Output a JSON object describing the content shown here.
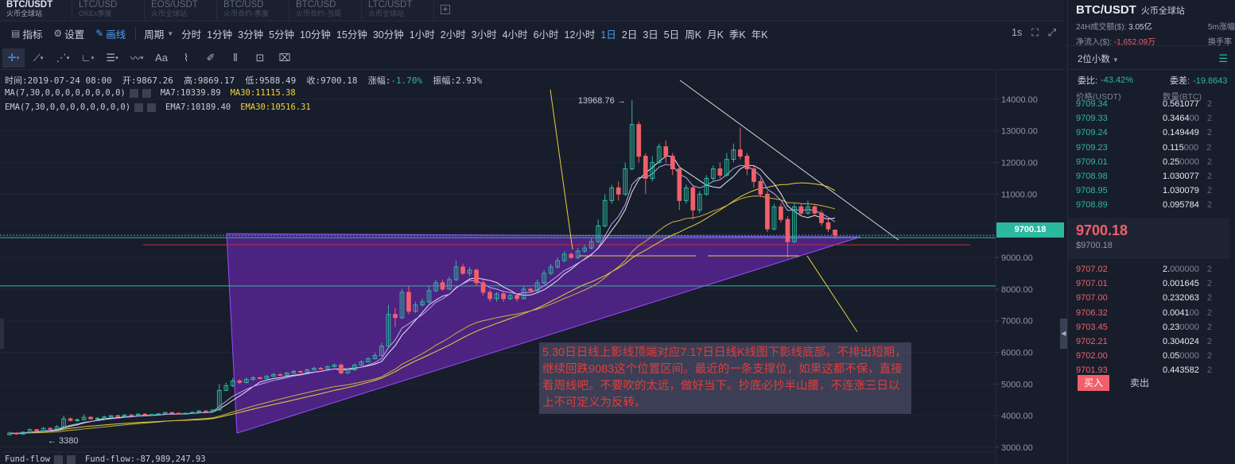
{
  "tabs": [
    {
      "pair": "BTC/USDT",
      "exchange": "火币全球站",
      "active": true
    },
    {
      "pair": "LTC/USD",
      "exchange": "OKEx季度",
      "active": false
    },
    {
      "pair": "EOS/USDT",
      "exchange": "火币全球站",
      "active": false
    },
    {
      "pair": "BTC/USD",
      "exchange": "火币合约-季度",
      "active": false
    },
    {
      "pair": "BTC/USD",
      "exchange": "火币合约-当周",
      "active": false
    },
    {
      "pair": "LTC/USDT",
      "exchange": "火币全球站",
      "active": false
    }
  ],
  "add_tab": "+",
  "toolbar": {
    "indicators": "指标",
    "settings": "设置",
    "draw": "画线",
    "period_label": "周期",
    "periods": [
      "分时",
      "1分钟",
      "3分钟",
      "5分钟",
      "10分钟",
      "15分钟",
      "30分钟",
      "1小时",
      "2小时",
      "3小时",
      "4小时",
      "6小时",
      "12小时",
      "1日",
      "2日",
      "3日",
      "5日",
      "周K",
      "月K",
      "季K",
      "年K"
    ],
    "active_period": "1日",
    "interval": "1s"
  },
  "draw_tools": [
    "crosshair-icon",
    "trendline-icon",
    "fib-icon",
    "angle-icon",
    "hlines-icon",
    "wave-icon",
    "text-icon",
    "ruler-icon",
    "brush-icon",
    "pattern-icon",
    "lock-icon",
    "trash-icon"
  ],
  "draw_text_tool": "Aa",
  "info": {
    "time_label": "时间:",
    "time": "2019-07-24 08:00",
    "open_label": "开:",
    "open": "9867.26",
    "high_label": "高:",
    "high": "9869.17",
    "low_label": "低:",
    "low": "9588.49",
    "close_label": "收:",
    "close": "9700.18",
    "change_label": "涨幅:",
    "change": "-1.70%",
    "amp_label": "振幅:",
    "amp": "2.93%"
  },
  "ma": {
    "label": "MA(7,30,0,0,0,0,0,0,0,0)",
    "ma7": "MA7:10339.89",
    "ma30": "MA30:11115.38"
  },
  "ema": {
    "label": "EMA(7,30,0,0,0,0,0,0,0,0)",
    "ema7": "EMA7:10189.40",
    "ema30": "EMA30:10516.31"
  },
  "fund": {
    "label": "Fund-flow",
    "value": "Fund-flow:-87,989,247.93"
  },
  "annotation": "5.30日日线上影线顶端对应7.17日日线K线图下影线底部。不排出短期，继续回跌9083这个位置区间。最近的一条支撑位，如果这都不保，直接看周线吧。不要吹的太远，做好当下。抄底必抄半山腰，不连涨三日以上不可定义为反转。",
  "current_price_tag": "9700.18",
  "chart_data": {
    "type": "candlestick",
    "y_ticks": [
      "3000.00",
      "4000.00",
      "5000.00",
      "6000.00",
      "7000.00",
      "8000.00",
      "9000.00",
      "10000.00",
      "11000.00",
      "12000.00",
      "13000.00",
      "14000.00"
    ],
    "ylim": [
      2700,
      14700
    ],
    "high_label": "13968.76",
    "low_label": "3380",
    "last_close": 9700.18,
    "horizontal_lines": [
      9700.18,
      9400,
      8100
    ],
    "candles": [
      [
        3400,
        3450,
        3380,
        3500
      ],
      [
        3450,
        3420,
        3400,
        3480
      ],
      [
        3420,
        3480,
        3400,
        3500
      ],
      [
        3480,
        3560,
        3460,
        3600
      ],
      [
        3560,
        3520,
        3500,
        3580
      ],
      [
        3520,
        3600,
        3500,
        3650
      ],
      [
        3600,
        3580,
        3550,
        3640
      ],
      [
        3580,
        3650,
        3560,
        3700
      ],
      [
        3650,
        3900,
        3640,
        4000
      ],
      [
        3900,
        3850,
        3820,
        3950
      ],
      [
        3850,
        3870,
        3800,
        3920
      ],
      [
        3870,
        3950,
        3860,
        4050
      ],
      [
        3950,
        3900,
        3880,
        3980
      ],
      [
        3900,
        3920,
        3880,
        3960
      ],
      [
        3920,
        3960,
        3900,
        4000
      ],
      [
        3960,
        4000,
        3940,
        4020
      ],
      [
        4000,
        3980,
        3950,
        4030
      ],
      [
        3980,
        4020,
        3960,
        4050
      ],
      [
        4020,
        4010,
        3990,
        4060
      ],
      [
        4010,
        4050,
        4000,
        4080
      ],
      [
        4050,
        4020,
        4000,
        4080
      ],
      [
        4020,
        4040,
        4000,
        4060
      ],
      [
        4040,
        4060,
        4020,
        4080
      ],
      [
        4060,
        4100,
        4050,
        4120
      ],
      [
        4100,
        4080,
        4060,
        4120
      ],
      [
        4080,
        4050,
        4030,
        4100
      ],
      [
        4050,
        4080,
        4030,
        4100
      ],
      [
        4080,
        4110,
        4070,
        4130
      ],
      [
        4110,
        4150,
        4100,
        4180
      ],
      [
        4150,
        4130,
        4100,
        4160
      ],
      [
        4130,
        4180,
        4120,
        4200
      ],
      [
        4180,
        4800,
        4170,
        5000
      ],
      [
        4800,
        4950,
        4780,
        5050
      ],
      [
        4950,
        5100,
        4900,
        5200
      ],
      [
        5100,
        5050,
        5000,
        5150
      ],
      [
        5050,
        5150,
        5020,
        5200
      ],
      [
        5150,
        5200,
        5100,
        5250
      ],
      [
        5200,
        5180,
        5150,
        5230
      ],
      [
        5180,
        5250,
        5160,
        5280
      ],
      [
        5250,
        5300,
        5230,
        5350
      ],
      [
        5300,
        5280,
        5260,
        5340
      ],
      [
        5280,
        5350,
        5260,
        5380
      ],
      [
        5350,
        5400,
        5320,
        5450
      ],
      [
        5400,
        5380,
        5350,
        5430
      ],
      [
        5380,
        5450,
        5360,
        5480
      ],
      [
        5450,
        5500,
        5430,
        5550
      ],
      [
        5500,
        5480,
        5460,
        5540
      ],
      [
        5480,
        5550,
        5460,
        5580
      ],
      [
        5550,
        5600,
        5530,
        5650
      ],
      [
        5600,
        5350,
        5300,
        5650
      ],
      [
        5350,
        5450,
        5330,
        5500
      ],
      [
        5450,
        5600,
        5420,
        5650
      ],
      [
        5600,
        5700,
        5580,
        5750
      ],
      [
        5700,
        5800,
        5680,
        5850
      ],
      [
        5800,
        5900,
        5780,
        6000
      ],
      [
        5900,
        6200,
        5880,
        6300
      ],
      [
        6200,
        7200,
        6180,
        7500
      ],
      [
        7200,
        7100,
        6800,
        7400
      ],
      [
        7100,
        7900,
        7050,
        8000
      ],
      [
        7900,
        7300,
        7200,
        8100
      ],
      [
        7300,
        7500,
        7250,
        7600
      ],
      [
        7500,
        7600,
        7450,
        7700
      ],
      [
        7600,
        7950,
        7550,
        8100
      ],
      [
        7950,
        8200,
        7900,
        8300
      ],
      [
        8200,
        8000,
        7950,
        8300
      ],
      [
        8000,
        8300,
        7980,
        8400
      ],
      [
        8300,
        8700,
        8250,
        8900
      ],
      [
        8700,
        8500,
        8450,
        8800
      ],
      [
        8500,
        8600,
        8400,
        8700
      ],
      [
        8600,
        8200,
        8100,
        8650
      ],
      [
        8200,
        7900,
        7800,
        8300
      ],
      [
        7900,
        7700,
        7600,
        8000
      ],
      [
        7700,
        7850,
        7600,
        7900
      ],
      [
        7850,
        7700,
        7600,
        7950
      ],
      [
        7700,
        7800,
        7650,
        7850
      ],
      [
        7800,
        7700,
        7600,
        7850
      ],
      [
        7700,
        8000,
        7680,
        8100
      ],
      [
        8000,
        7950,
        7900,
        8050
      ],
      [
        7950,
        8200,
        7900,
        8300
      ],
      [
        8200,
        8500,
        8150,
        8600
      ],
      [
        8500,
        8700,
        8450,
        8800
      ],
      [
        8700,
        8900,
        8650,
        9000
      ],
      [
        8900,
        9100,
        8850,
        9200
      ],
      [
        9100,
        9000,
        8950,
        9150
      ],
      [
        9000,
        9200,
        8950,
        9300
      ],
      [
        9200,
        9300,
        9150,
        9400
      ],
      [
        9300,
        9500,
        9250,
        9600
      ],
      [
        9500,
        10000,
        9450,
        10200
      ],
      [
        10000,
        10800,
        9950,
        11000
      ],
      [
        10800,
        11200,
        10700,
        11300
      ],
      [
        11200,
        11000,
        10800,
        11400
      ],
      [
        11000,
        11800,
        10950,
        12000
      ],
      [
        11800,
        13200,
        11750,
        13968
      ],
      [
        13200,
        12200,
        12000,
        13300
      ],
      [
        12200,
        11500,
        11000,
        12300
      ],
      [
        11500,
        12000,
        11400,
        12200
      ],
      [
        12000,
        12500,
        11950,
        12600
      ],
      [
        12500,
        12200,
        12000,
        12700
      ],
      [
        12200,
        11800,
        11600,
        12300
      ],
      [
        11800,
        10800,
        10500,
        11900
      ],
      [
        10800,
        11200,
        10700,
        11300
      ],
      [
        11200,
        10500,
        10200,
        11300
      ],
      [
        10500,
        11000,
        10400,
        11100
      ],
      [
        11000,
        11500,
        10950,
        11600
      ],
      [
        11500,
        11800,
        11400,
        11900
      ],
      [
        11800,
        11600,
        11500,
        12000
      ],
      [
        11600,
        12100,
        11550,
        12300
      ],
      [
        12100,
        12400,
        12000,
        12600
      ],
      [
        12400,
        12200,
        12100,
        13100
      ],
      [
        12200,
        11800,
        11600,
        12300
      ],
      [
        11800,
        11400,
        11200,
        11900
      ],
      [
        11400,
        11000,
        10900,
        11500
      ],
      [
        11000,
        9900,
        9800,
        11100
      ],
      [
        9900,
        10600,
        9850,
        10700
      ],
      [
        10600,
        10200,
        10100,
        10700
      ],
      [
        10200,
        9500,
        9000,
        10300
      ],
      [
        9500,
        10600,
        9450,
        10700
      ],
      [
        10600,
        10400,
        10300,
        10700
      ],
      [
        10400,
        10600,
        10350,
        10800
      ],
      [
        10600,
        10400,
        10300,
        10650
      ],
      [
        10400,
        10100,
        10000,
        10500
      ],
      [
        10100,
        9900,
        9800,
        10200
      ],
      [
        9867,
        9700,
        9588,
        9869
      ]
    ]
  },
  "panel": {
    "pair": "BTC/USDT",
    "exchange": "火币全球站",
    "vol_label": "24H成交额($):",
    "vol": "3.05亿",
    "vol_right": "5m涨幅",
    "inflow_label": "净流入($):",
    "inflow": "-1,652.09万",
    "inflow_right": "换手率",
    "decimal": "2位小数",
    "ratio_label": "委比:",
    "ratio": "-43.42%",
    "diff_label": "委差:",
    "diff": "-19.8643",
    "col_price": "价格(USDT)",
    "col_amount": "数量(BTC)",
    "bids_top": [
      {
        "price": "9709.34",
        "amount": "0.561077"
      },
      {
        "price": "9709.33",
        "amount": "0.3464",
        "dim": "00"
      },
      {
        "price": "9709.24",
        "amount": "0.149449"
      },
      {
        "price": "9709.23",
        "amount": "0.115",
        "dim": "000"
      },
      {
        "price": "9709.01",
        "amount": "0.25",
        "dim": "0000"
      },
      {
        "price": "9708.98",
        "amount": "1.030077"
      },
      {
        "price": "9708.95",
        "amount": "1.030079"
      },
      {
        "price": "9708.89",
        "amount": "0.095784"
      }
    ],
    "mid_price": "9700.18",
    "mid_usd": "$9700.18",
    "asks_bottom": [
      {
        "price": "9707.02",
        "amount": "2.",
        "dim": "000000"
      },
      {
        "price": "9707.01",
        "amount": "0.001645"
      },
      {
        "price": "9707.00",
        "amount": "0.232063"
      },
      {
        "price": "9706.32",
        "amount": "0.0041",
        "dim": "00"
      },
      {
        "price": "9703.45",
        "amount": "0.23",
        "dim": "0000"
      },
      {
        "price": "9702.21",
        "amount": "0.304024"
      },
      {
        "price": "9702.00",
        "amount": "0.05",
        "dim": "0000"
      },
      {
        "price": "9701.93",
        "amount": "0.443582"
      }
    ],
    "buy": "买入",
    "sell": "卖出",
    "bar_digit": "2"
  }
}
